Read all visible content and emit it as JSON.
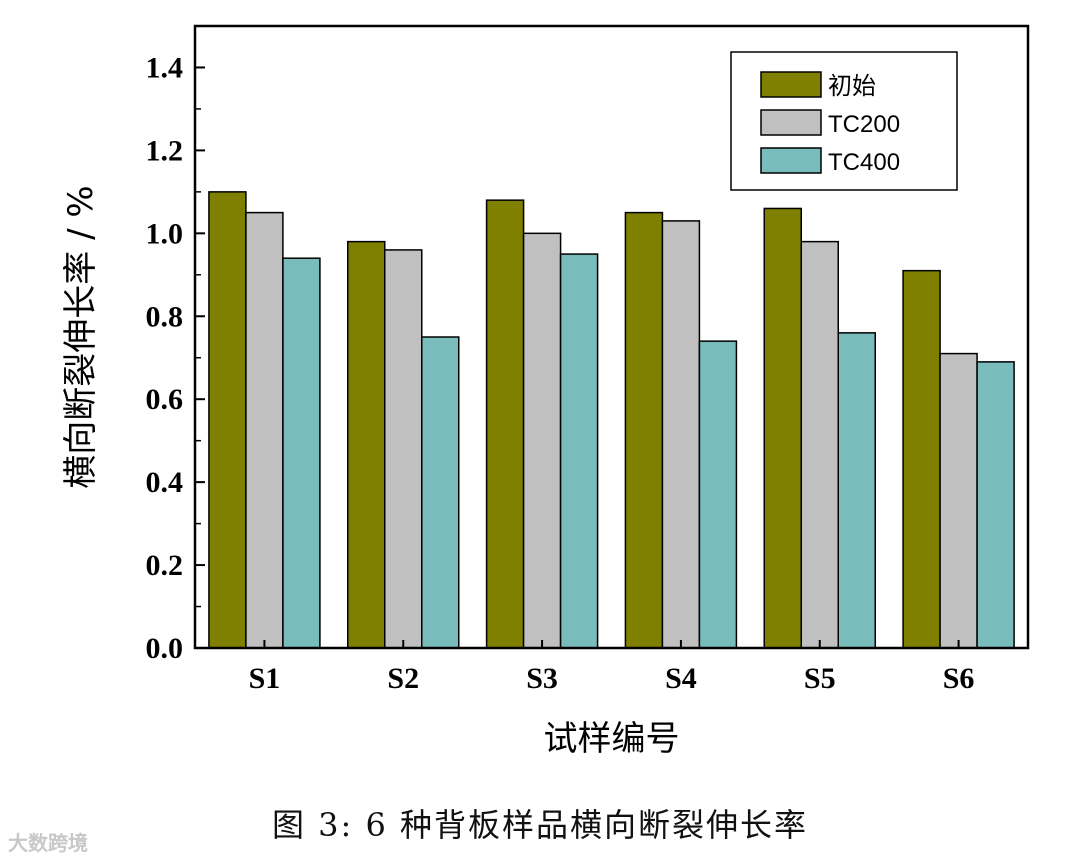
{
  "chart_data": {
    "type": "bar",
    "categories": [
      "S1",
      "S2",
      "S3",
      "S4",
      "S5",
      "S6"
    ],
    "series": [
      {
        "name": "初始",
        "color": "#808000",
        "values": [
          1.1,
          0.98,
          1.08,
          1.05,
          1.06,
          0.91
        ]
      },
      {
        "name": "TC200",
        "color": "#c0c0c0",
        "values": [
          1.05,
          0.96,
          1.0,
          1.03,
          0.98,
          0.71
        ]
      },
      {
        "name": "TC400",
        "color": "#79bcbc",
        "values": [
          0.94,
          0.75,
          0.95,
          0.74,
          0.76,
          0.69
        ]
      }
    ],
    "ylim": [
      0,
      1.5
    ],
    "yticks": [
      "0.0",
      "0.2",
      "0.4",
      "0.6",
      "0.8",
      "1.0",
      "1.2",
      "1.4"
    ],
    "xlabel": "试样编号",
    "ylabel": "横向断裂伸长率 / %",
    "legend_position": "top-right",
    "grid": false
  },
  "caption": "图 3: 6 种背板样品横向断裂伸长率",
  "watermark": "大数跨境"
}
